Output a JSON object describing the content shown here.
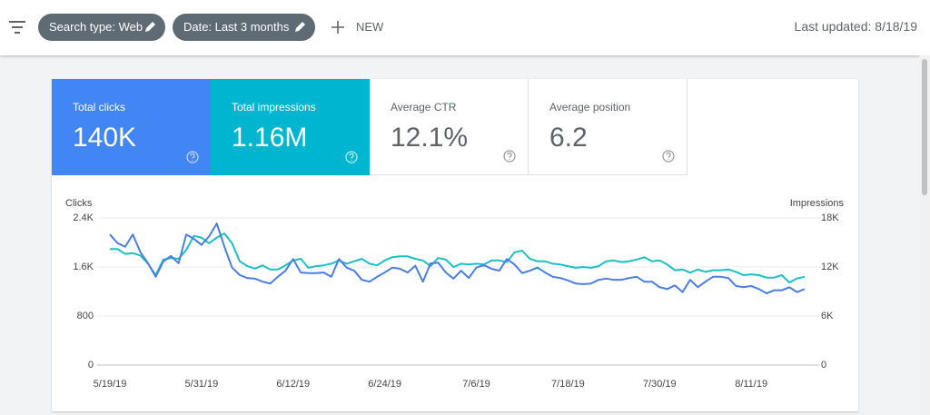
{
  "toolbar": {
    "chips": [
      "Search type: Web",
      "Date: Last 3 months"
    ],
    "new": "NEW",
    "last_updated": "Last updated: 8/18/19"
  },
  "metrics": [
    {
      "label": "Total clicks",
      "value": "140K"
    },
    {
      "label": "Total impressions",
      "value": "1.16M"
    },
    {
      "label": "Average CTR",
      "value": "12.1%"
    },
    {
      "label": "Average position",
      "value": "6.2"
    }
  ],
  "chart_data": {
    "type": "line",
    "y_label": "Clicks",
    "y2_label": "Impressions",
    "categories": [
      "5/19/19",
      null,
      null,
      null,
      null,
      null,
      null,
      null,
      null,
      null,
      null,
      null,
      "5/31/19",
      null,
      null,
      null,
      null,
      null,
      null,
      null,
      null,
      null,
      null,
      null,
      "6/12/19",
      null,
      null,
      null,
      null,
      null,
      null,
      null,
      null,
      null,
      null,
      null,
      "6/24/19",
      null,
      null,
      null,
      null,
      null,
      null,
      null,
      null,
      null,
      null,
      null,
      "7/6/19",
      null,
      null,
      null,
      null,
      null,
      null,
      null,
      null,
      null,
      null,
      null,
      "7/18/19",
      null,
      null,
      null,
      null,
      null,
      null,
      null,
      null,
      null,
      null,
      null,
      "7/30/19",
      null,
      null,
      null,
      null,
      null,
      null,
      null,
      null,
      null,
      null,
      null,
      "8/11/19",
      null,
      null,
      null,
      null,
      null,
      null,
      null
    ],
    "series": [
      {
        "name": "Clicks",
        "color": "#4a7fe0",
        "values": [
          2130,
          1990,
          1930,
          2130,
          1840,
          1660,
          1440,
          1690,
          1780,
          1660,
          2130,
          2060,
          1960,
          2100,
          2310,
          1930,
          1590,
          1470,
          1420,
          1410,
          1360,
          1330,
          1440,
          1540,
          1730,
          1510,
          1500,
          1500,
          1510,
          1440,
          1730,
          1590,
          1540,
          1390,
          1360,
          1440,
          1510,
          1590,
          1570,
          1510,
          1620,
          1360,
          1660,
          1670,
          1510,
          1410,
          1540,
          1420,
          1590,
          1630,
          1570,
          1540,
          1730,
          1640,
          1500,
          1540,
          1590,
          1510,
          1440,
          1420,
          1380,
          1330,
          1320,
          1330,
          1390,
          1410,
          1390,
          1390,
          1420,
          1440,
          1360,
          1360,
          1270,
          1240,
          1300,
          1190,
          1390,
          1270,
          1360,
          1440,
          1440,
          1420,
          1290,
          1270,
          1290,
          1240,
          1170,
          1220,
          1220,
          1270,
          1190,
          1240
        ]
      },
      {
        "name": "Impressions",
        "color": "#1bbfc4",
        "axis": "y2",
        "values": [
          14200,
          14200,
          13600,
          13700,
          13400,
          12400,
          11000,
          12900,
          13100,
          13000,
          14100,
          15800,
          15600,
          14900,
          15600,
          16100,
          14900,
          12700,
          12100,
          11800,
          12200,
          11700,
          11700,
          12200,
          12800,
          13000,
          11900,
          12100,
          12200,
          12400,
          12800,
          12400,
          12700,
          13000,
          12400,
          12200,
          12800,
          13200,
          13300,
          13300,
          13000,
          12800,
          12100,
          13100,
          12900,
          12000,
          12400,
          12300,
          12400,
          12300,
          12800,
          12800,
          12600,
          13800,
          14000,
          13000,
          12700,
          12700,
          12400,
          12300,
          12100,
          11900,
          12000,
          11900,
          12100,
          12700,
          12800,
          12600,
          12700,
          12900,
          13200,
          12700,
          12800,
          12300,
          11600,
          11700,
          11300,
          11700,
          11400,
          11600,
          11600,
          11700,
          11400,
          11000,
          11100,
          11000,
          10700,
          10700,
          11000,
          10100,
          10600,
          10800
        ]
      }
    ],
    "ylim": [
      0,
      2400
    ],
    "yticks": [
      0,
      800,
      {
        "value": 1600,
        "label": "1.6K"
      },
      {
        "value": 2400,
        "label": "2.4K"
      }
    ],
    "y2lim": [
      0,
      18000
    ],
    "y2ticks": [
      0,
      {
        "value": 6000,
        "label": "6K"
      },
      {
        "value": 12000,
        "label": "12K"
      },
      {
        "value": 18000,
        "label": "18K"
      }
    ],
    "grid": true
  }
}
